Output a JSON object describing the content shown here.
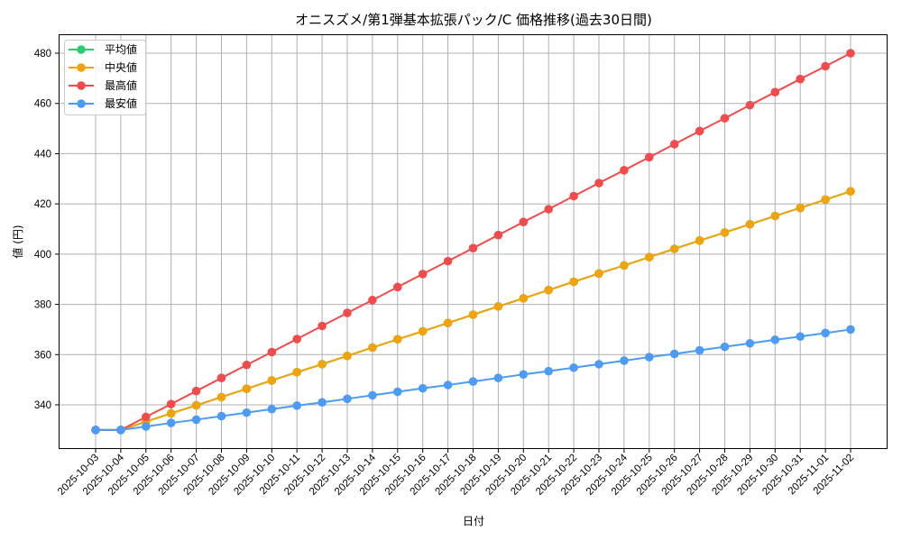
{
  "chart_data": {
    "type": "line",
    "title": "オニスズメ/第1弾基本拡張パック/C 価格推移(過去30日間)",
    "xlabel": "日付",
    "ylabel": "値 (円)",
    "ylim": [
      322,
      487
    ],
    "yticks": [
      340,
      360,
      380,
      400,
      420,
      440,
      460,
      480
    ],
    "grid": true,
    "legend_position": "upper left",
    "x": [
      "2025-10-03",
      "2025-10-04",
      "2025-10-05",
      "2025-10-06",
      "2025-10-07",
      "2025-10-08",
      "2025-10-09",
      "2025-10-10",
      "2025-10-11",
      "2025-10-12",
      "2025-10-13",
      "2025-10-14",
      "2025-10-15",
      "2025-10-16",
      "2025-10-17",
      "2025-10-18",
      "2025-10-19",
      "2025-10-20",
      "2025-10-21",
      "2025-10-22",
      "2025-10-23",
      "2025-10-24",
      "2025-10-25",
      "2025-10-26",
      "2025-10-27",
      "2025-10-28",
      "2025-10-29",
      "2025-10-30",
      "2025-10-31",
      "2025-11-01",
      "2025-11-02"
    ],
    "series": [
      {
        "name": "平均値",
        "color": "#2ecc71",
        "values": [
          330,
          330,
          333.3,
          336.6,
          339.8,
          343.1,
          346.4,
          349.7,
          353.0,
          356.2,
          359.5,
          362.8,
          366.1,
          369.3,
          372.6,
          375.9,
          379.2,
          382.4,
          385.7,
          389.0,
          392.3,
          395.5,
          398.8,
          402.1,
          405.4,
          408.6,
          411.9,
          415.2,
          418.4,
          421.7,
          425
        ]
      },
      {
        "name": "中央値",
        "color": "#f0a30a",
        "values": [
          330,
          330,
          333.3,
          336.6,
          339.8,
          343.1,
          346.4,
          349.7,
          353.0,
          356.2,
          359.5,
          362.8,
          366.1,
          369.3,
          372.6,
          375.9,
          379.2,
          382.4,
          385.7,
          389.0,
          392.3,
          395.5,
          398.8,
          402.1,
          405.4,
          408.6,
          411.9,
          415.2,
          418.4,
          421.7,
          425
        ]
      },
      {
        "name": "最高値",
        "color": "#f24b4b",
        "values": [
          330,
          330,
          335.2,
          340.3,
          345.5,
          350.7,
          355.9,
          361.0,
          366.2,
          371.4,
          376.6,
          381.7,
          386.9,
          392.1,
          397.2,
          402.4,
          407.6,
          412.8,
          417.9,
          423.1,
          428.3,
          433.4,
          438.6,
          443.8,
          449.0,
          454.1,
          459.3,
          464.5,
          469.7,
          474.8,
          480
        ]
      },
      {
        "name": "最安値",
        "color": "#4c9bf5",
        "values": [
          330,
          330,
          331.4,
          332.8,
          334.1,
          335.5,
          336.9,
          338.3,
          339.7,
          341.0,
          342.4,
          343.8,
          345.2,
          346.6,
          347.9,
          349.3,
          350.7,
          352.1,
          353.4,
          354.8,
          356.2,
          357.6,
          359.0,
          360.3,
          361.7,
          363.1,
          364.5,
          365.9,
          367.2,
          368.6,
          370
        ]
      }
    ]
  }
}
